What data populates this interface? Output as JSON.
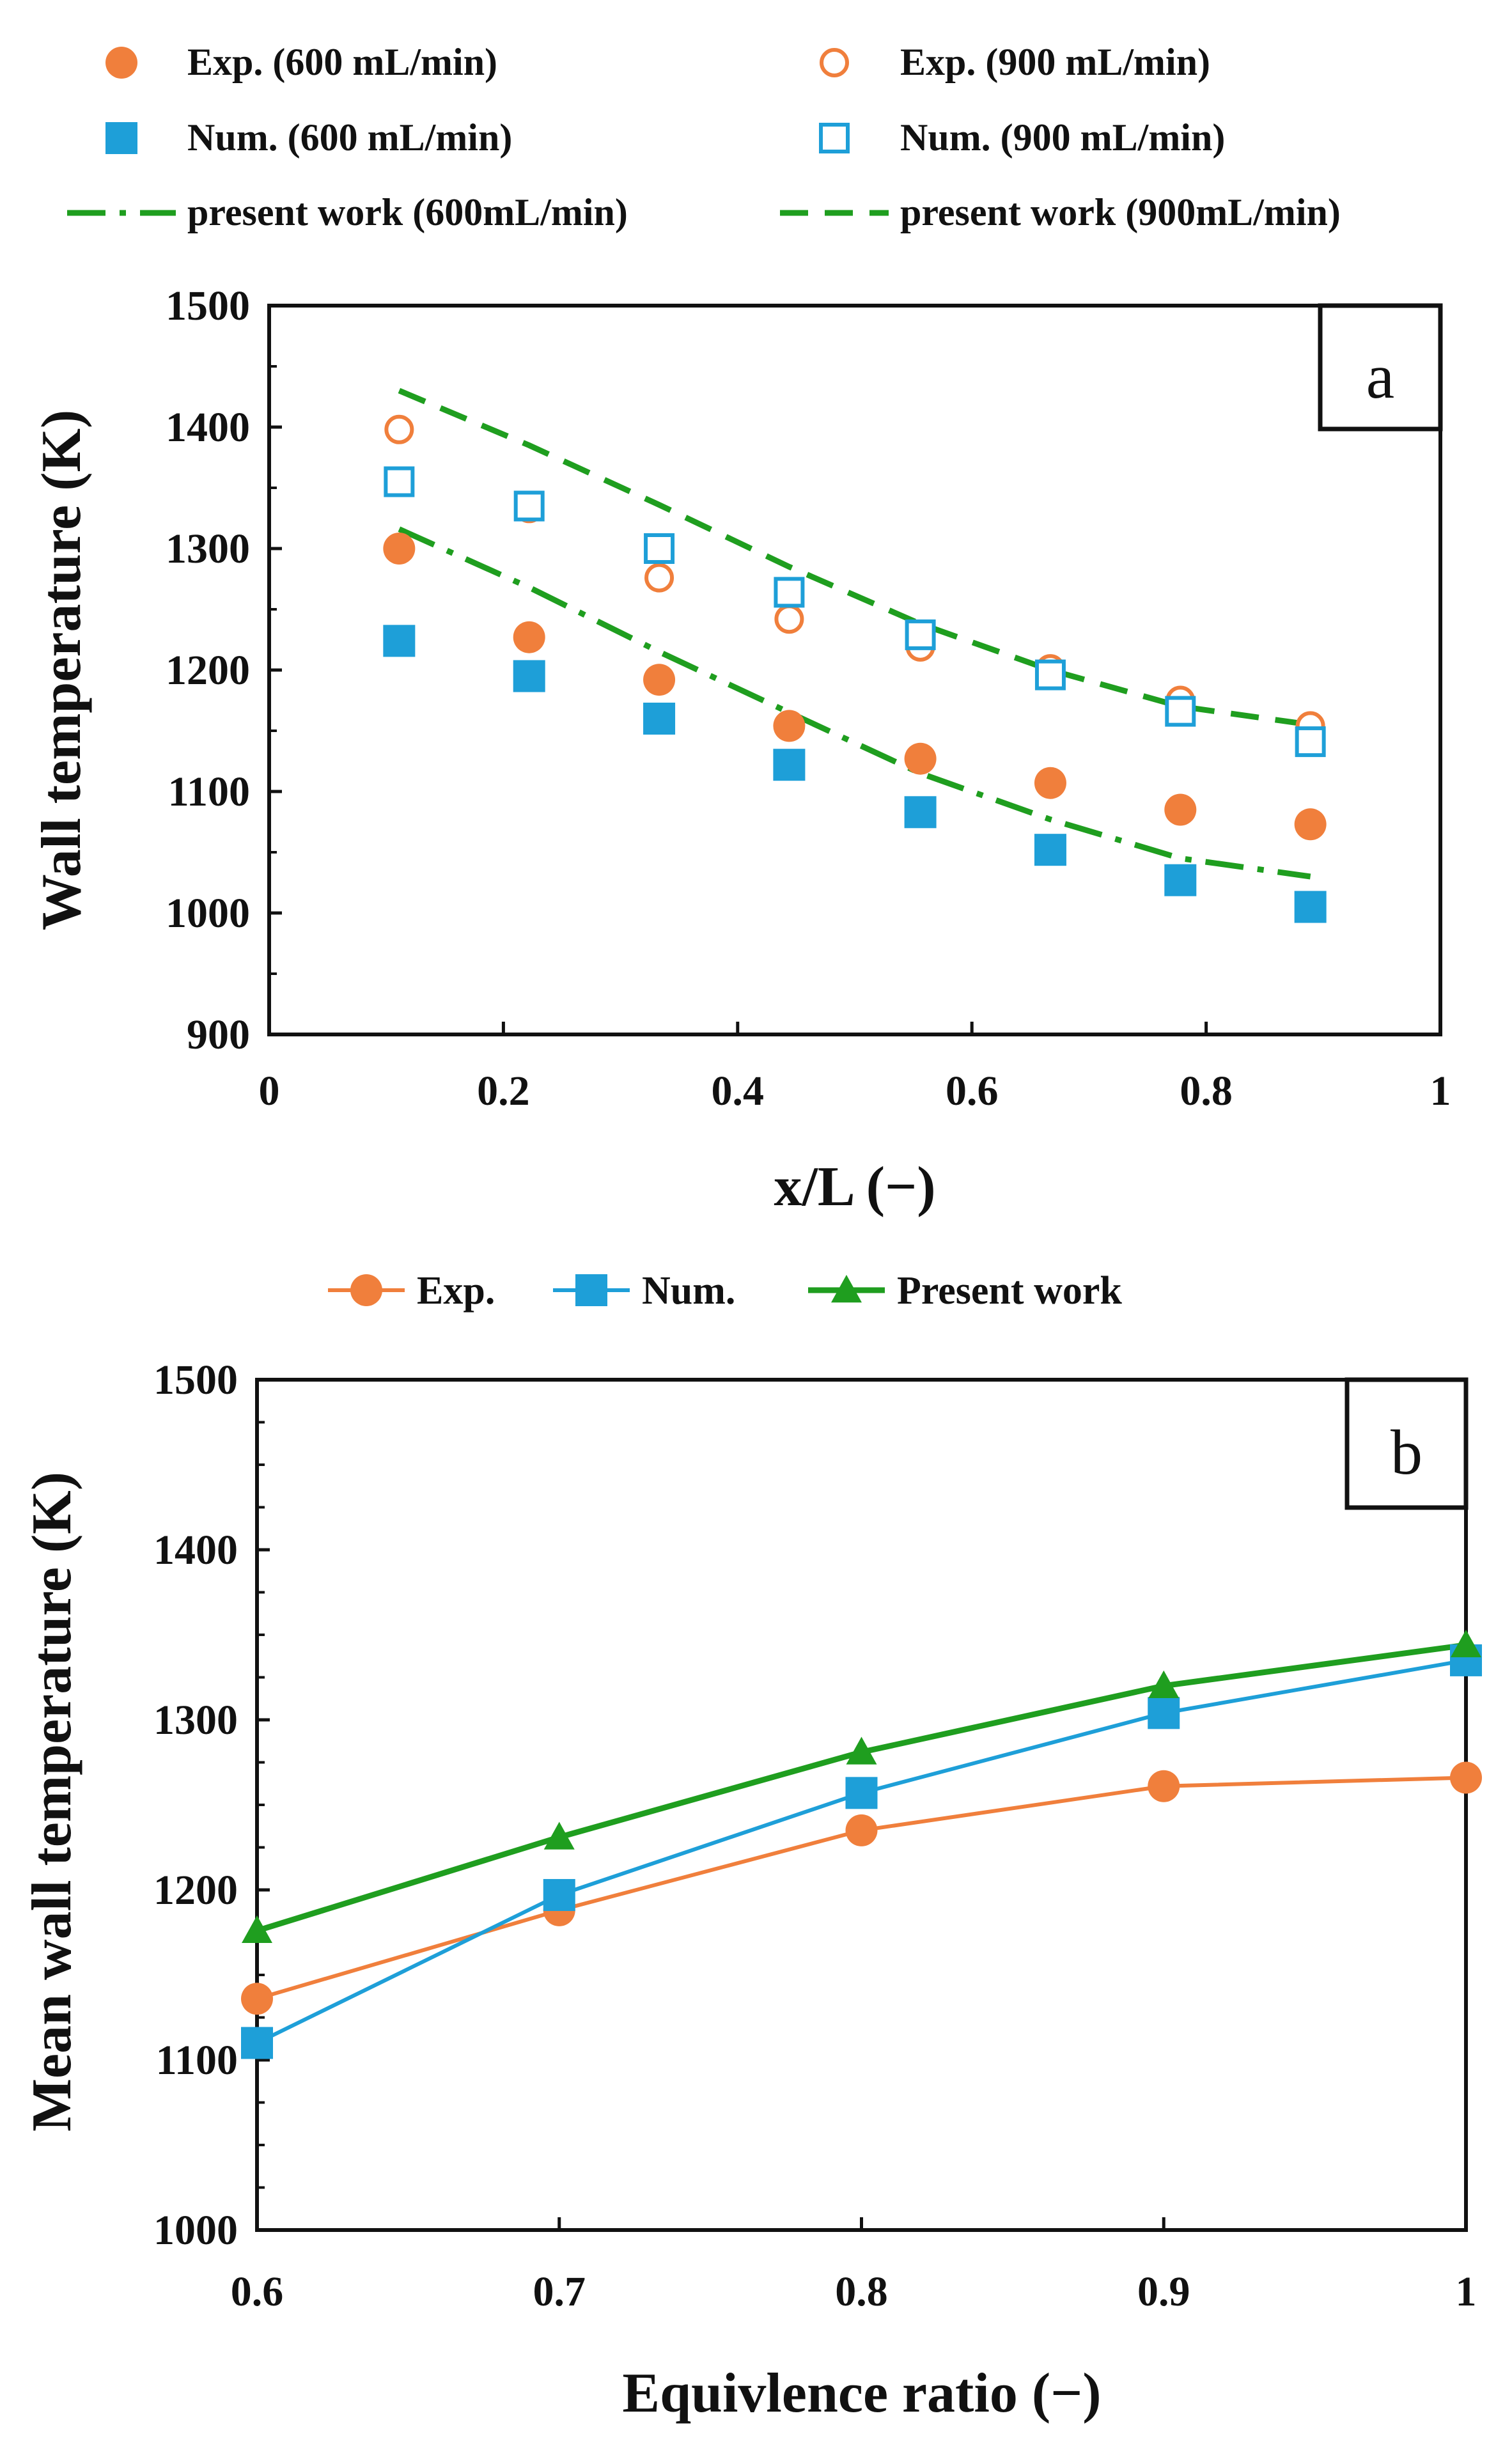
{
  "colors": {
    "exp": "#f07f3c",
    "num": "#1e9fd8",
    "present": "#1f9e1f",
    "axis": "#111111"
  },
  "chart_data": [
    {
      "id": "a",
      "type": "scatter",
      "panel_label": "a",
      "xlabel": "x/L (−)",
      "ylabel": "Wall temperature (K)",
      "xlim": [
        0,
        1
      ],
      "ylim": [
        900,
        1500
      ],
      "xticks": [
        0,
        0.2,
        0.4,
        0.6,
        0.8,
        1
      ],
      "xtick_labels": [
        "0",
        "0.2",
        "0.4",
        "0.6",
        "0.8",
        "1"
      ],
      "yticks": [
        900,
        1000,
        1100,
        1200,
        1300,
        1400,
        1500
      ],
      "ytick_labels": [
        "900",
        "1000",
        "1100",
        "1200",
        "1300",
        "1400",
        "1500"
      ],
      "grid": false,
      "legend_position": "top",
      "series": [
        {
          "key": "exp600",
          "name": "Exp. (600 mL/min)",
          "style": "filled-circle",
          "color_key": "exp",
          "x": [
            0.111,
            0.222,
            0.333,
            0.444,
            0.556,
            0.667,
            0.778,
            0.889
          ],
          "y": [
            1300,
            1227,
            1192,
            1154,
            1127,
            1107,
            1085,
            1073
          ]
        },
        {
          "key": "exp900",
          "name": "Exp. (900 mL/min)",
          "style": "open-circle",
          "color_key": "exp",
          "x": [
            0.111,
            0.222,
            0.333,
            0.444,
            0.556,
            0.667,
            0.778,
            0.889
          ],
          "y": [
            1398,
            1333,
            1276,
            1242,
            1219,
            1201,
            1175,
            1154
          ]
        },
        {
          "key": "num600",
          "name": "Num. (600 mL/min)",
          "style": "filled-square",
          "color_key": "num",
          "x": [
            0.111,
            0.222,
            0.333,
            0.444,
            0.556,
            0.667,
            0.778,
            0.889
          ],
          "y": [
            1224,
            1195,
            1160,
            1122,
            1083,
            1052,
            1027,
            1005
          ]
        },
        {
          "key": "num900",
          "name": "Num. (900 mL/min)",
          "style": "open-square",
          "color_key": "num",
          "x": [
            0.111,
            0.222,
            0.333,
            0.444,
            0.556,
            0.667,
            0.778,
            0.889
          ],
          "y": [
            1355,
            1335,
            1300,
            1264,
            1229,
            1196,
            1166,
            1141
          ]
        },
        {
          "key": "pw600",
          "name": "present work (600mL/min)",
          "style": "dashdot-line",
          "color_key": "present",
          "x": [
            0.111,
            0.222,
            0.333,
            0.444,
            0.556,
            0.667,
            0.778,
            0.889
          ],
          "y": [
            1316,
            1268,
            1215,
            1165,
            1115,
            1077,
            1045,
            1030
          ]
        },
        {
          "key": "pw900",
          "name": "present work (900mL/min)",
          "style": "dashed-line",
          "color_key": "present",
          "x": [
            0.111,
            0.222,
            0.333,
            0.444,
            0.556,
            0.667,
            0.778,
            0.889
          ],
          "y": [
            1430,
            1385,
            1336,
            1285,
            1238,
            1200,
            1170,
            1155
          ]
        }
      ]
    },
    {
      "id": "b",
      "type": "line",
      "panel_label": "b",
      "xlabel": "Equivlence ratio (−)",
      "ylabel": "Mean wall temperature (K)",
      "xlim": [
        0.6,
        1
      ],
      "ylim": [
        1000,
        1500
      ],
      "xticks": [
        0.6,
        0.7,
        0.8,
        0.9,
        1
      ],
      "xtick_labels": [
        "0.6",
        "0.7",
        "0.8",
        "0.9",
        "1"
      ],
      "yticks": [
        1000,
        1100,
        1200,
        1300,
        1400,
        1500
      ],
      "ytick_labels": [
        "1000",
        "1100",
        "1200",
        "1300",
        "1400",
        "1500"
      ],
      "grid": false,
      "legend_position": "top",
      "categories": [
        0.6,
        0.7,
        0.8,
        0.9,
        1
      ],
      "series": [
        {
          "key": "exp",
          "name": "Exp.",
          "style": "line-circle",
          "color_key": "exp",
          "values": [
            1136,
            1188,
            1235,
            1261,
            1266
          ]
        },
        {
          "key": "num",
          "name": "Num.",
          "style": "line-square",
          "color_key": "num",
          "values": [
            1110,
            1197,
            1257,
            1304,
            1335
          ]
        },
        {
          "key": "present",
          "name": "Present work",
          "style": "line-triangle",
          "color_key": "present",
          "values": [
            1176,
            1231,
            1281,
            1320,
            1344
          ]
        }
      ]
    }
  ]
}
